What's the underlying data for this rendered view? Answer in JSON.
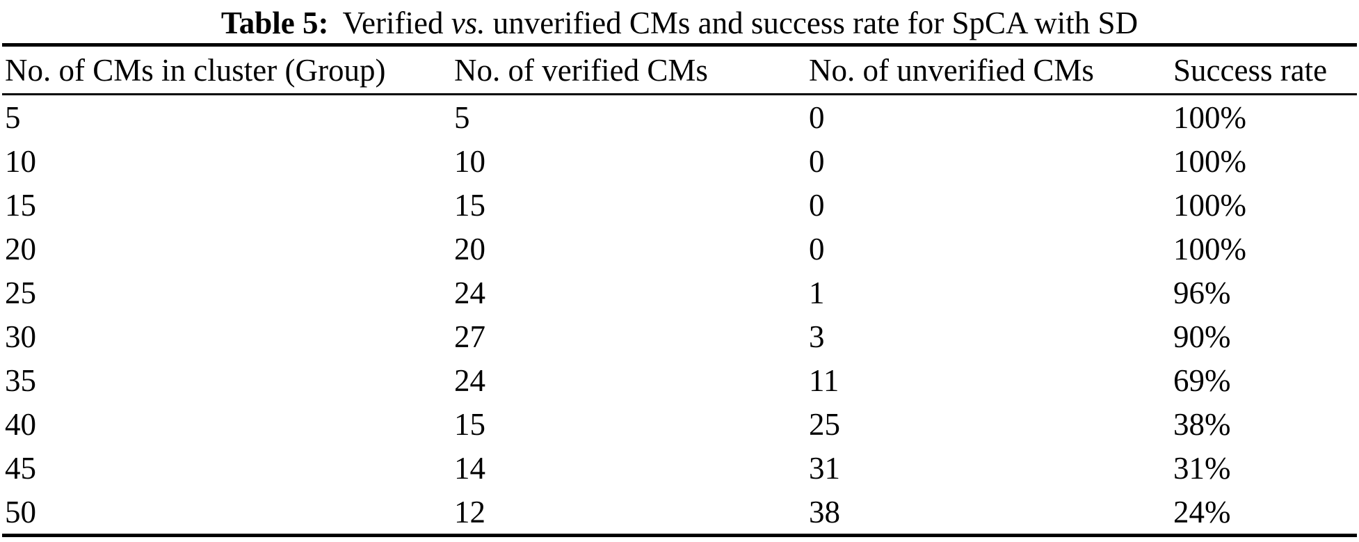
{
  "caption": {
    "label": "Table 5:",
    "segment1": "Verified",
    "vs": "vs.",
    "segment2": "unverified CMs and success rate for SpCA with SD"
  },
  "table": {
    "headers": [
      "No. of CMs in cluster (Group)",
      "No. of verified CMs",
      "No. of unverified CMs",
      "Success rate"
    ],
    "rows": [
      {
        "cells": [
          "5",
          "5",
          "0",
          "100%"
        ]
      },
      {
        "cells": [
          "10",
          "10",
          "0",
          "100%"
        ]
      },
      {
        "cells": [
          "15",
          "15",
          "0",
          "100%"
        ]
      },
      {
        "cells": [
          "20",
          "20",
          "0",
          "100%"
        ]
      },
      {
        "cells": [
          "25",
          "24",
          "1",
          "96%"
        ]
      },
      {
        "cells": [
          "30",
          "27",
          "3",
          "90%"
        ]
      },
      {
        "cells": [
          "35",
          "24",
          "11",
          "69%"
        ]
      },
      {
        "cells": [
          "40",
          "15",
          "25",
          "38%"
        ]
      },
      {
        "cells": [
          "45",
          "14",
          "31",
          "31%"
        ]
      },
      {
        "cells": [
          "50",
          "12",
          "38",
          "24%"
        ]
      }
    ]
  }
}
